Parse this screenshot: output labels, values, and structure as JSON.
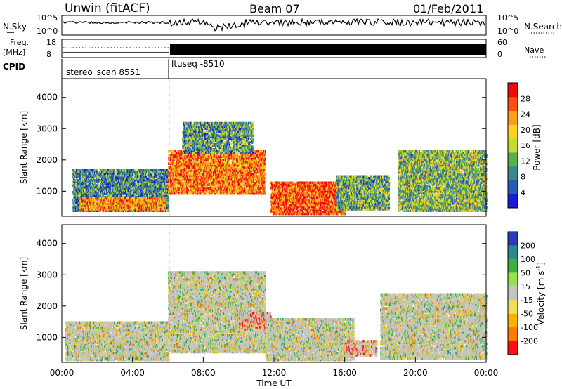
{
  "header": {
    "radar_title": "Unwin (fitACF)",
    "beam": "Beam 07",
    "date": "01/Feb/2011"
  },
  "panels": {
    "nsky": {
      "left_label": "N.Sky",
      "right_label": "N.Search",
      "tick_top": "10^5",
      "tick_bottom": "10^0"
    },
    "freq": {
      "left_label_1": "Freq.",
      "left_label_2": "[MHz]",
      "tick_top": "18",
      "tick_bottom": "8",
      "right_ticks": [
        "60",
        "0"
      ],
      "right_label": "Nave"
    },
    "cpid": {
      "label": "CPID",
      "segments": [
        {
          "name": "stereo_scan 8551",
          "start_hour": 0,
          "end_hour": 6
        },
        {
          "name": "ltuseq -8510",
          "start_hour": 6,
          "end_hour": 24
        }
      ]
    }
  },
  "colors": {
    "power": [
      "#1a1adc",
      "#2a5ab4",
      "#3a8a8c",
      "#5ab04c",
      "#c4dc2c",
      "#ffd020",
      "#ff9c1c",
      "#ff5014",
      "#ee0a0a"
    ],
    "velocity": [
      "#ff1010",
      "#ff7a00",
      "#ffb000",
      "#f2de5a",
      "#c4c4c4",
      "#98e050",
      "#3ab040",
      "#2a8a8a",
      "#2a3ab8"
    ],
    "ground_scatter": "#c4c4c4"
  },
  "chart_data": [
    {
      "type": "heatmap",
      "name": "power",
      "ylabel": "Slant Range [km]",
      "yticks": [
        1000,
        2000,
        3000,
        4000
      ],
      "ylim": [
        200,
        4600
      ],
      "xlim": [
        0,
        24
      ],
      "colorbar_label": "Power [dB]",
      "colorbar_ticks": [
        4,
        8,
        12,
        16,
        20,
        24,
        28
      ],
      "colorbar_range": [
        0,
        32
      ],
      "regions": [
        {
          "t0": 0.6,
          "t1": 6.0,
          "r0": 350,
          "r1": 1700,
          "level": 0.25
        },
        {
          "t0": 1.0,
          "t1": 5.8,
          "r0": 400,
          "r1": 800,
          "level": 0.75
        },
        {
          "t0": 6.0,
          "t1": 11.5,
          "r0": 900,
          "r1": 2300,
          "level": 0.8
        },
        {
          "t0": 6.8,
          "t1": 10.8,
          "r0": 2200,
          "r1": 3200,
          "level": 0.3
        },
        {
          "t0": 11.8,
          "t1": 16.0,
          "r0": 250,
          "r1": 1300,
          "level": 0.9
        },
        {
          "t0": 15.5,
          "t1": 18.5,
          "r0": 400,
          "r1": 1500,
          "level": 0.35
        },
        {
          "t0": 19.0,
          "t1": 24.0,
          "r0": 350,
          "r1": 2300,
          "level": 0.4
        }
      ]
    },
    {
      "type": "heatmap",
      "name": "velocity",
      "xlabel": "Time UT",
      "ylabel": "Slant Range [km]",
      "yticks": [
        1000,
        2000,
        3000,
        4000
      ],
      "ylim": [
        200,
        4600
      ],
      "xlim": [
        0,
        24
      ],
      "xticks": [
        "00:00",
        "04:00",
        "08:00",
        "12:00",
        "16:00",
        "20:00",
        "00:00"
      ],
      "colorbar_label": "Velocity [m s",
      "colorbar_label_sup": "-1",
      "colorbar_label_end": "]",
      "colorbar_ticks": [
        "200",
        "100",
        "50",
        "15",
        "-15",
        "-50",
        "-100",
        "-200"
      ],
      "regions": [
        {
          "t0": 0.2,
          "t1": 6.0,
          "r0": 250,
          "r1": 1500,
          "level": 0.5
        },
        {
          "t0": 6.0,
          "t1": 11.5,
          "r0": 500,
          "r1": 3100,
          "level": 0.5
        },
        {
          "t0": 10.0,
          "t1": 11.8,
          "r0": 1300,
          "r1": 1800,
          "level": 0.05
        },
        {
          "t0": 11.5,
          "t1": 16.5,
          "r0": 250,
          "r1": 1600,
          "level": 0.5
        },
        {
          "t0": 16.0,
          "t1": 17.8,
          "r0": 400,
          "r1": 900,
          "level": 0.2
        },
        {
          "t0": 18.0,
          "t1": 24.0,
          "r0": 300,
          "r1": 2400,
          "level": 0.5
        }
      ]
    }
  ]
}
